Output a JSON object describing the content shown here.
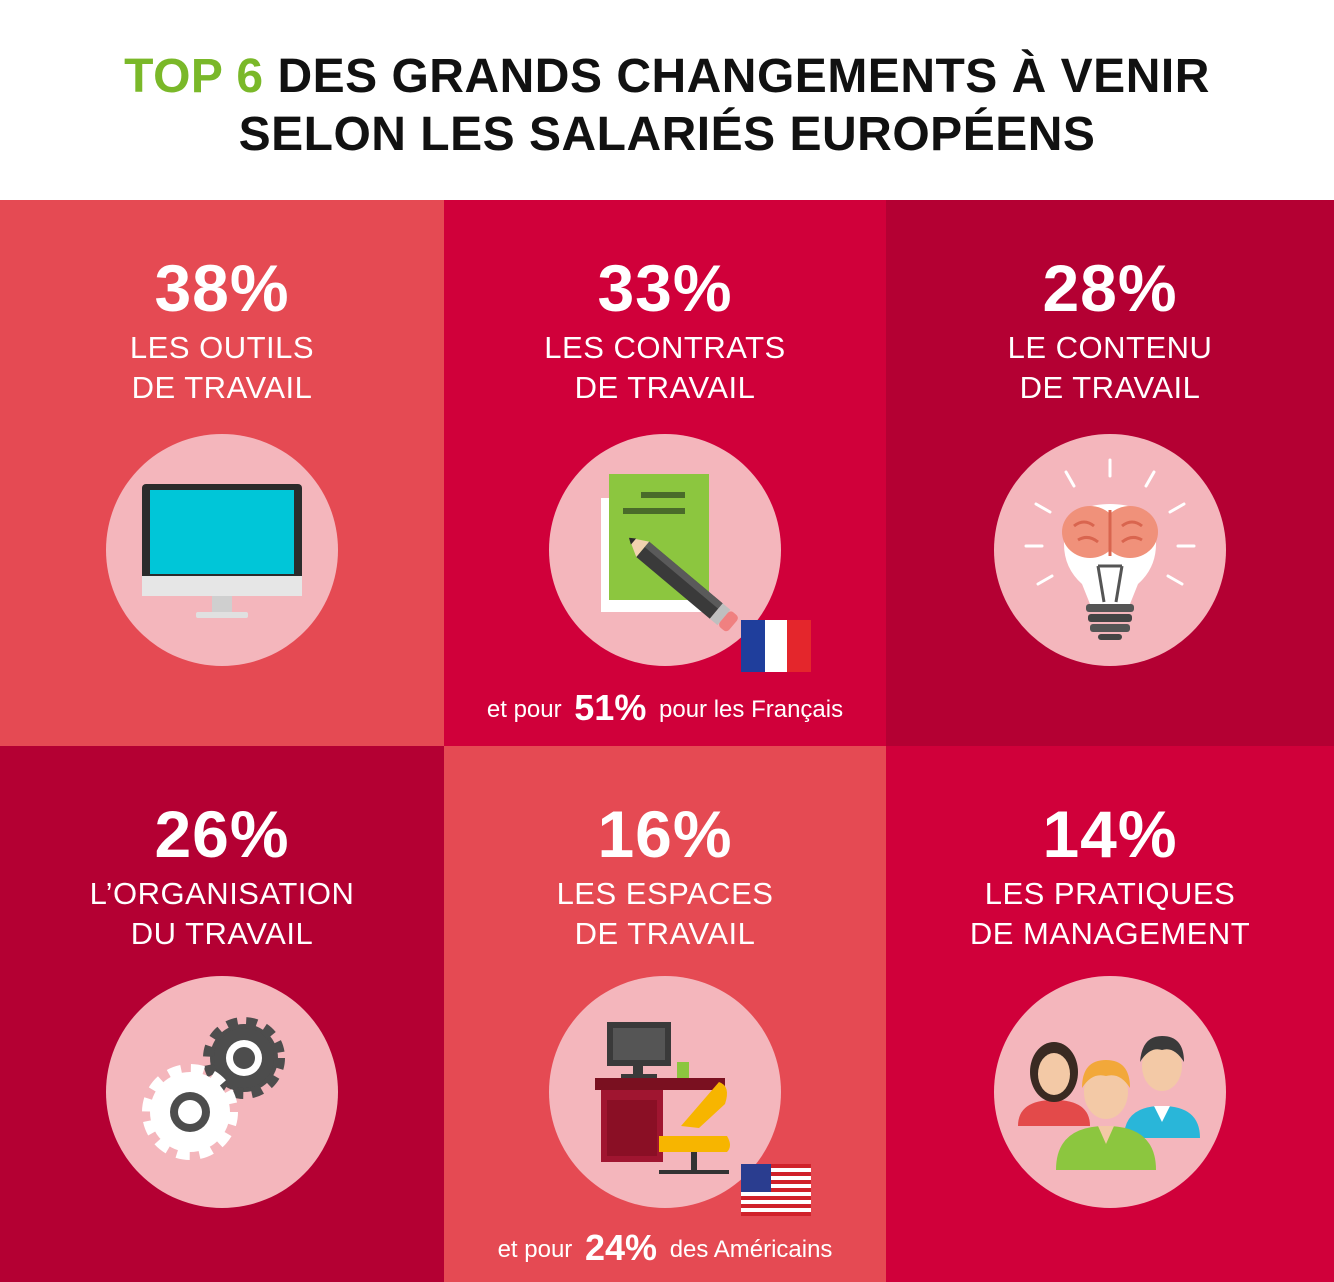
{
  "header": {
    "title_accent": "TOP 6",
    "title_line1": "DES GRANDS CHANGEMENTS À VENIR",
    "title_line2": "SELON LES SALARIÉS EUROPÉENS"
  },
  "colors": {
    "accent_green": "#7ab829",
    "tile_light_red": "#e54a53",
    "tile_red": "#d0003a",
    "tile_dark_red": "#b40033",
    "circle_pink": "#f4b6bc"
  },
  "items": [
    {
      "percent": "38%",
      "label_line1": "LES OUTILS",
      "label_line2": "DE TRAVAIL",
      "icon": "computer-monitor-icon"
    },
    {
      "percent": "33%",
      "label_line1": "LES CONTRATS",
      "label_line2": "DE TRAVAIL",
      "icon": "contract-pencil-icon",
      "note_before": "et pour",
      "note_value": "51%",
      "note_after": "pour les Français",
      "flag": "france-flag"
    },
    {
      "percent": "28%",
      "label_line1": "LE CONTENU",
      "label_line2": "DE TRAVAIL",
      "icon": "brain-lightbulb-icon"
    },
    {
      "percent": "26%",
      "label_line1": "L’ORGANISATION",
      "label_line2": "DU TRAVAIL",
      "icon": "gears-icon"
    },
    {
      "percent": "16%",
      "label_line1": "LES ESPACES",
      "label_line2": "DE TRAVAIL",
      "icon": "desk-workspace-icon",
      "note_before": "et pour",
      "note_value": "24%",
      "note_after": "des Américains",
      "flag": "usa-flag"
    },
    {
      "percent": "14%",
      "label_line1": "LES PRATIQUES",
      "label_line2": "DE MANAGEMENT",
      "icon": "people-group-icon"
    }
  ]
}
